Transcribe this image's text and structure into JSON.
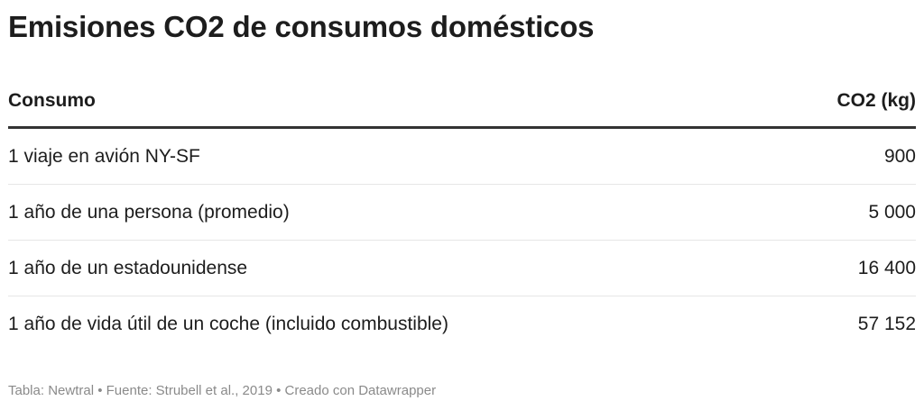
{
  "title": "Emisiones CO2 de consumos domésticos",
  "footer": "Tabla: Newtral • Fuente: Strubell et al., 2019 • Creado con Datawrapper",
  "chart_data": {
    "type": "table",
    "title": "Emisiones CO2 de consumos domésticos",
    "columns": [
      "Consumo",
      "CO2 (kg)"
    ],
    "rows": [
      {
        "label": "1 viaje en avión NY-SF",
        "value": 900,
        "display": "900"
      },
      {
        "label": "1 año de una persona (promedio)",
        "value": 5000,
        "display": "5 000"
      },
      {
        "label": "1 año de un estadounidense",
        "value": 16400,
        "display": "16 400"
      },
      {
        "label": "1 año de vida útil de un coche (incluido combustible)",
        "value": 57152,
        "display": "57 152"
      }
    ]
  }
}
